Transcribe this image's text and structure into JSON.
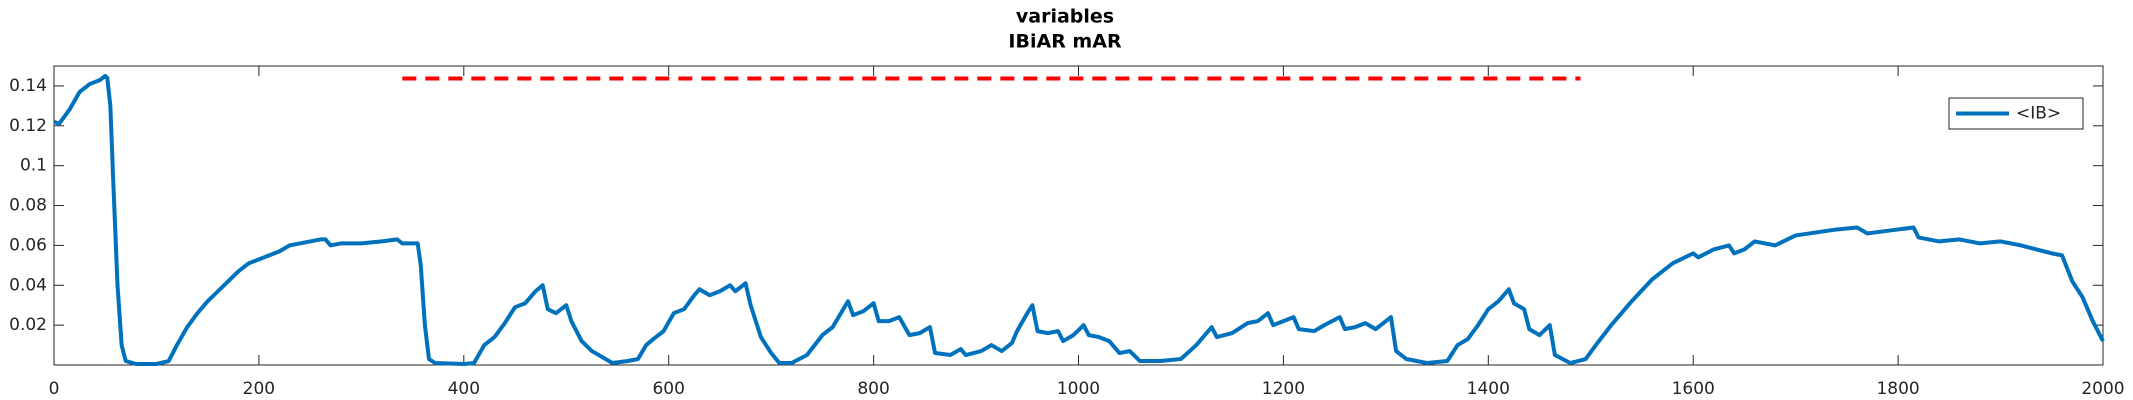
{
  "chart_data": {
    "type": "line",
    "title": "variables",
    "subtitle": "IBiAR mAR",
    "x": [
      0,
      5,
      15,
      25,
      35,
      45,
      50,
      52,
      55,
      58,
      62,
      66,
      70,
      80,
      100,
      112,
      120,
      130,
      140,
      150,
      160,
      170,
      180,
      190,
      200,
      210,
      220,
      230,
      240,
      250,
      260,
      265,
      270,
      280,
      300,
      320,
      335,
      340,
      355,
      358,
      362,
      366,
      372,
      400,
      410,
      420,
      430,
      440,
      450,
      460,
      470,
      477,
      482,
      490,
      500,
      505,
      515,
      525,
      535,
      545,
      560,
      570,
      578,
      585,
      595,
      605,
      615,
      625,
      630,
      640,
      650,
      660,
      665,
      675,
      680,
      690,
      700,
      708,
      720,
      735,
      750,
      760,
      775,
      780,
      790,
      800,
      805,
      815,
      825,
      835,
      845,
      855,
      860,
      875,
      885,
      890,
      905,
      915,
      925,
      935,
      940,
      950,
      955,
      960,
      970,
      980,
      985,
      995,
      1005,
      1010,
      1020,
      1030,
      1040,
      1050,
      1060,
      1080,
      1100,
      1115,
      1130,
      1135,
      1150,
      1165,
      1175,
      1185,
      1190,
      1200,
      1210,
      1215,
      1230,
      1240,
      1255,
      1260,
      1270,
      1280,
      1290,
      1305,
      1310,
      1320,
      1340,
      1360,
      1370,
      1380,
      1390,
      1400,
      1410,
      1420,
      1425,
      1435,
      1440,
      1450,
      1460,
      1465,
      1480,
      1495,
      1505,
      1520,
      1540,
      1560,
      1580,
      1600,
      1605,
      1620,
      1635,
      1640,
      1650,
      1660,
      1680,
      1700,
      1740,
      1760,
      1770,
      1800,
      1815,
      1820,
      1840,
      1860,
      1880,
      1900,
      1920,
      1935,
      1950,
      1960,
      1970,
      1980,
      1990,
      2000
    ],
    "series": [
      {
        "name": "<IB>",
        "color": "#0072bd",
        "values": [
          0.122,
          0.121,
          0.128,
          0.137,
          0.141,
          0.143,
          0.145,
          0.144,
          0.13,
          0.09,
          0.04,
          0.01,
          0.002,
          0.0005,
          0.0005,
          0.002,
          0.01,
          0.019,
          0.026,
          0.032,
          0.037,
          0.042,
          0.047,
          0.051,
          0.053,
          0.055,
          0.057,
          0.06,
          0.061,
          0.062,
          0.063,
          0.063,
          0.06,
          0.061,
          0.061,
          0.062,
          0.063,
          0.061,
          0.061,
          0.05,
          0.02,
          0.003,
          0.001,
          0.0005,
          0.001,
          0.01,
          0.014,
          0.021,
          0.029,
          0.031,
          0.037,
          0.04,
          0.028,
          0.026,
          0.03,
          0.022,
          0.012,
          0.007,
          0.004,
          0.001,
          0.002,
          0.003,
          0.01,
          0.013,
          0.017,
          0.026,
          0.028,
          0.035,
          0.038,
          0.035,
          0.037,
          0.04,
          0.037,
          0.041,
          0.03,
          0.014,
          0.006,
          0.001,
          0.001,
          0.005,
          0.015,
          0.019,
          0.032,
          0.025,
          0.027,
          0.031,
          0.022,
          0.022,
          0.024,
          0.015,
          0.016,
          0.019,
          0.006,
          0.005,
          0.008,
          0.005,
          0.007,
          0.01,
          0.007,
          0.011,
          0.017,
          0.026,
          0.03,
          0.017,
          0.016,
          0.017,
          0.012,
          0.015,
          0.02,
          0.015,
          0.014,
          0.012,
          0.006,
          0.007,
          0.002,
          0.002,
          0.003,
          0.01,
          0.019,
          0.014,
          0.016,
          0.021,
          0.022,
          0.026,
          0.02,
          0.022,
          0.024,
          0.018,
          0.017,
          0.02,
          0.024,
          0.018,
          0.019,
          0.021,
          0.018,
          0.024,
          0.007,
          0.003,
          0.001,
          0.002,
          0.01,
          0.013,
          0.02,
          0.028,
          0.032,
          0.038,
          0.031,
          0.028,
          0.018,
          0.015,
          0.02,
          0.005,
          0.001,
          0.003,
          0.01,
          0.02,
          0.032,
          0.043,
          0.051,
          0.056,
          0.054,
          0.058,
          0.06,
          0.056,
          0.058,
          0.062,
          0.06,
          0.065,
          0.068,
          0.069,
          0.066,
          0.068,
          0.069,
          0.064,
          0.062,
          0.063,
          0.061,
          0.062,
          0.06,
          0.058,
          0.056,
          0.055,
          0.042,
          0.034,
          0.022,
          0.012
        ]
      }
    ],
    "reference_line": {
      "x": [
        340,
        1490
      ],
      "y": 0.1437,
      "color": "#ff0000",
      "style": "dashed"
    },
    "xlim": [
      0,
      2000
    ],
    "ylim": [
      0,
      0.15
    ],
    "xticks": [
      0,
      200,
      400,
      600,
      800,
      1000,
      1200,
      1400,
      1600,
      1800,
      2000
    ],
    "yticks": [
      0.02,
      0.04,
      0.06,
      0.08,
      0.1,
      0.12,
      0.14
    ],
    "legend": "northeast"
  }
}
